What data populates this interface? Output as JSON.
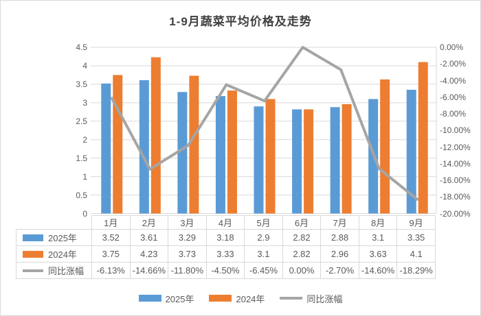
{
  "title": "1-9月蔬菜平均价格及走势",
  "colors": {
    "series_2025": "#5B9BD5",
    "series_2024": "#ED7D31",
    "series_yoy": "#A5A5A5",
    "gridline": "#D9D9D9",
    "table_border": "#D9D9D9",
    "axis_text": "#595959",
    "title_text": "#404040"
  },
  "chart_data": {
    "type": "bar",
    "subtype": "clustered bars with secondary-axis line overlay and data table",
    "title": "1-9月蔬菜平均价格及走势",
    "categories": [
      "1月",
      "2月",
      "3月",
      "4月",
      "5月",
      "6月",
      "7月",
      "8月",
      "9月"
    ],
    "series": [
      {
        "name": "2025年",
        "type": "bar",
        "axis": "primary",
        "color": "#5B9BD5",
        "values": [
          3.52,
          3.61,
          3.29,
          3.18,
          2.9,
          2.82,
          2.88,
          3.1,
          3.35
        ],
        "display": [
          "3.52",
          "3.61",
          "3.29",
          "3.18",
          "2.9",
          "2.82",
          "2.88",
          "3.1",
          "3.35"
        ]
      },
      {
        "name": "2024年",
        "type": "bar",
        "axis": "primary",
        "color": "#ED7D31",
        "values": [
          3.75,
          4.23,
          3.73,
          3.33,
          3.1,
          2.82,
          2.96,
          3.63,
          4.1
        ],
        "display": [
          "3.75",
          "4.23",
          "3.73",
          "3.33",
          "3.1",
          "2.82",
          "2.96",
          "3.63",
          "4.1"
        ]
      },
      {
        "name": "同比涨幅",
        "type": "line",
        "axis": "secondary",
        "color": "#A5A5A5",
        "values": [
          -6.13,
          -14.66,
          -11.8,
          -4.5,
          -6.45,
          0.0,
          -2.7,
          -14.6,
          -18.29
        ],
        "display": [
          "-6.13%",
          "-14.66%",
          "-11.80%",
          "-4.50%",
          "-6.45%",
          "0.00%",
          "-2.70%",
          "-14.60%",
          "-18.29%"
        ]
      }
    ],
    "left_axis": {
      "min": 0,
      "max": 4.5,
      "step": 0.5,
      "ticks": [
        "0",
        "0.5",
        "1",
        "1.5",
        "2",
        "2.5",
        "3",
        "3.5",
        "4",
        "4.5"
      ]
    },
    "right_axis": {
      "min": -20,
      "max": 0,
      "step": 2,
      "ticks": [
        "0.00%",
        "-2.00%",
        "-4.00%",
        "-6.00%",
        "-8.00%",
        "-10.00%",
        "-12.00%",
        "-14.00%",
        "-16.00%",
        "-18.00%",
        "-20.00%"
      ]
    },
    "grid": true,
    "legend_position": "bottom",
    "data_table_shown": true
  },
  "legend": {
    "items": [
      {
        "label": "2025年",
        "swatch": "bar",
        "color": "#5B9BD5"
      },
      {
        "label": "2024年",
        "swatch": "bar",
        "color": "#ED7D31"
      },
      {
        "label": "同比涨幅",
        "swatch": "line",
        "color": "#A5A5A5"
      }
    ]
  }
}
